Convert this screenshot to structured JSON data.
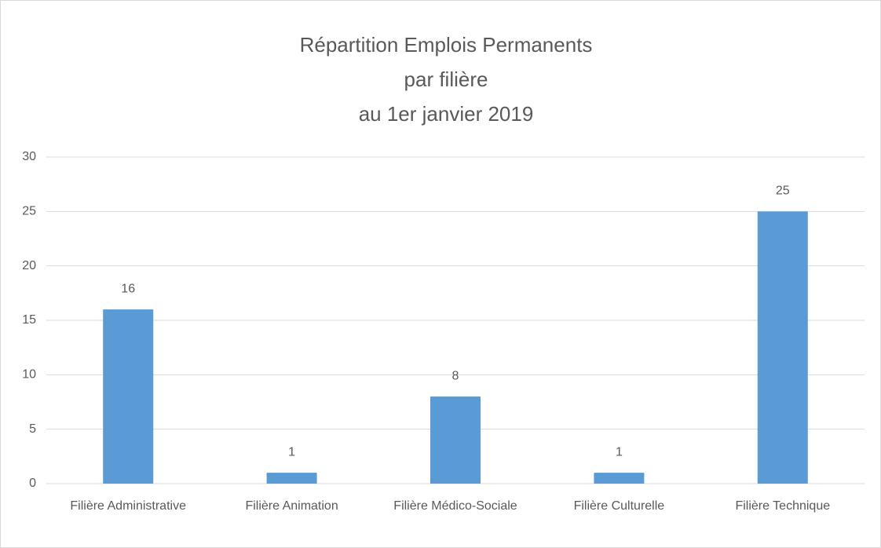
{
  "chart_data": {
    "type": "bar",
    "title": [
      "Répartition Emplois Permanents",
      "par filière",
      "au 1er janvier 2019"
    ],
    "categories": [
      "Filière Administrative",
      "Filière Animation",
      "Filière Médico-Sociale",
      "Filière Culturelle",
      "Filière Technique"
    ],
    "values": [
      16,
      1,
      8,
      1,
      25
    ],
    "color": "#5b9bd5",
    "ylim": [
      0,
      30
    ],
    "yticks": [
      0,
      5,
      10,
      15,
      20,
      25,
      30
    ],
    "grid": true
  }
}
